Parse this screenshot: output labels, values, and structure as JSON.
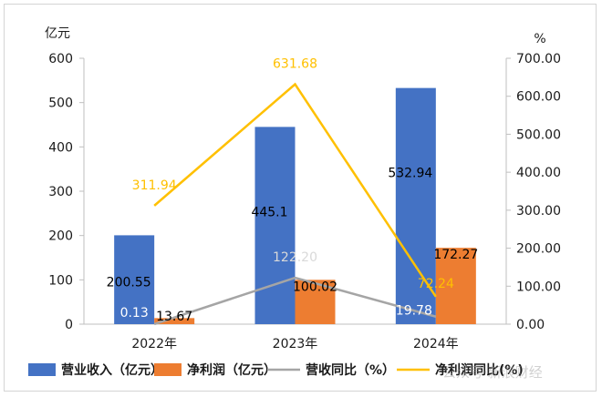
{
  "chart_data": {
    "type": "bar",
    "categories": [
      "2022年",
      "2023年",
      "2024年"
    ],
    "y_left": {
      "label": "亿元",
      "min": 0,
      "max": 600,
      "ticks": [
        "0",
        "100",
        "200",
        "300",
        "400",
        "500",
        "600"
      ]
    },
    "y_right": {
      "label": "%",
      "min": 0,
      "max": 700,
      "ticks": [
        "0.00",
        "100.00",
        "200.00",
        "300.00",
        "400.00",
        "500.00",
        "600.00",
        "700.00"
      ]
    },
    "series": [
      {
        "name": "营业收入（亿元）",
        "kind": "bar",
        "axis": "left",
        "color": "#4472C4",
        "values": [
          200.55,
          445.1,
          532.94
        ],
        "labels": [
          "200.55",
          "445.1",
          "532.94"
        ],
        "label_color": "#000000"
      },
      {
        "name": "净利润（亿元）",
        "kind": "bar",
        "axis": "left",
        "color": "#ED7D31",
        "values": [
          13.67,
          100.02,
          172.27
        ],
        "labels": [
          "13.67",
          "100.02",
          "172.27"
        ],
        "label_color": "#000000"
      },
      {
        "name": "营收同比（%）",
        "kind": "line",
        "axis": "right",
        "color": "#A5A5A5",
        "values": [
          0.13,
          122.2,
          19.78
        ],
        "labels": [
          "0.13",
          "122.20",
          "19.78"
        ],
        "label_color": "#ffffff"
      },
      {
        "name": "净利润同比(%)",
        "kind": "line",
        "axis": "right",
        "color": "#FFC000",
        "values": [
          311.94,
          631.68,
          72.24
        ],
        "labels": [
          "311.94",
          "631.68",
          "72.24"
        ],
        "label_color": "#FFC000"
      }
    ],
    "legend_position": "bottom",
    "grid": false
  },
  "watermark": "公众号·新浪财经"
}
